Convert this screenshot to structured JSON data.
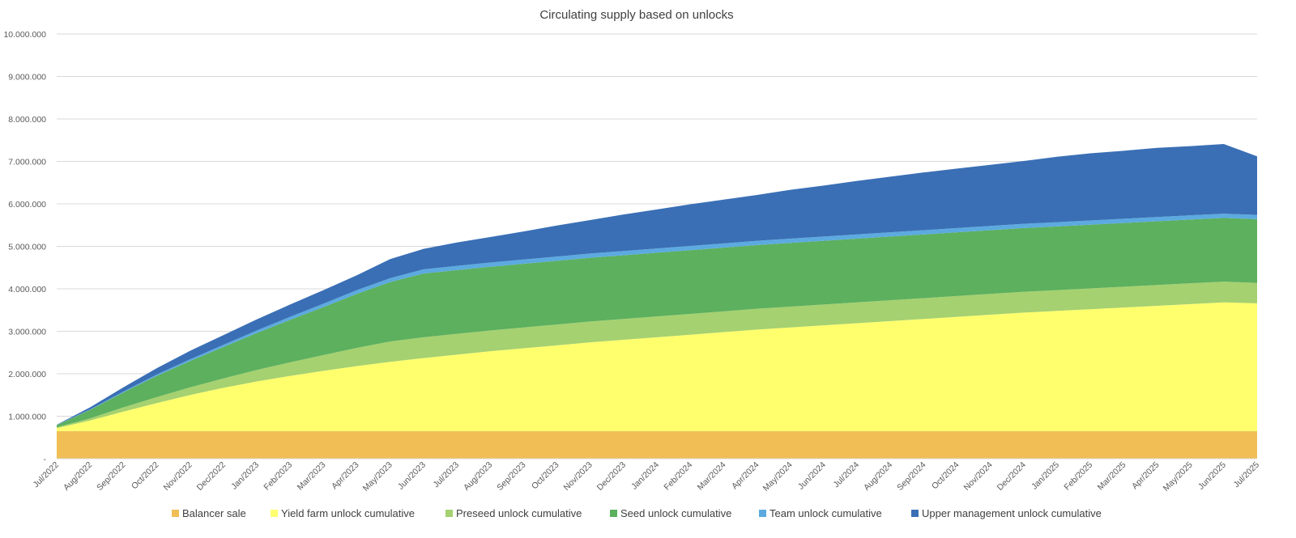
{
  "chart_data": {
    "type": "area",
    "stacked": true,
    "title": "Circulating supply based on unlocks",
    "xlabel": "",
    "ylabel": "",
    "ylim": [
      0,
      10000000
    ],
    "y_ticks": [
      0,
      1000000,
      2000000,
      3000000,
      4000000,
      5000000,
      6000000,
      7000000,
      8000000,
      9000000,
      10000000
    ],
    "y_tick_labels": [
      "-",
      "1.000.000",
      "2.000.000",
      "3.000.000",
      "4.000.000",
      "5.000.000",
      "6.000.000",
      "7.000.000",
      "8.000.000",
      "9.000.000",
      "10.000.000"
    ],
    "grid": true,
    "legend_position": "bottom",
    "categories": [
      "Jul/2022",
      "Aug/2022",
      "Sep/2022",
      "Oct/2022",
      "Nov/2022",
      "Dec/2022",
      "Jan/2023",
      "Feb/2023",
      "Mar/2023",
      "Apr/2023",
      "May/2023",
      "Jun/2023",
      "Jul/2023",
      "Aug/2023",
      "Sep/2023",
      "Oct/2023",
      "Nov/2023",
      "Dec/2023",
      "Jan/2024",
      "Feb/2024",
      "Mar/2024",
      "Apr/2024",
      "May/2024",
      "Jun/2024",
      "Jul/2024",
      "Aug/2024",
      "Sep/2024",
      "Oct/2024",
      "Nov/2024",
      "Dec/2024",
      "Jan/2025",
      "Feb/2025",
      "Mar/2025",
      "Apr/2025",
      "May/2025",
      "Jun/2025",
      "Jul/2025"
    ],
    "series": [
      {
        "name": "Balancer sale",
        "color": "#F0BE55",
        "values": [
          650000,
          650000,
          650000,
          650000,
          650000,
          650000,
          650000,
          650000,
          650000,
          650000,
          650000,
          650000,
          650000,
          650000,
          650000,
          650000,
          650000,
          650000,
          650000,
          650000,
          650000,
          650000,
          650000,
          650000,
          650000,
          650000,
          650000,
          650000,
          650000,
          650000,
          650000,
          650000,
          650000,
          650000,
          650000,
          650000,
          650000
        ]
      },
      {
        "name": "Yield farm unlock cumulative",
        "color": "#FFFF6E",
        "values": [
          70000,
          250000,
          460000,
          660000,
          850000,
          1020000,
          1170000,
          1300000,
          1420000,
          1530000,
          1630000,
          1720000,
          1800000,
          1880000,
          1950000,
          2020000,
          2090000,
          2150000,
          2210000,
          2270000,
          2330000,
          2390000,
          2440000,
          2490000,
          2540000,
          2590000,
          2640000,
          2690000,
          2740000,
          2790000,
          2830000,
          2870000,
          2910000,
          2950000,
          2990000,
          3030000,
          3010000
        ]
      },
      {
        "name": "Preseed unlock cumulative",
        "color": "#A5D170",
        "values": [
          20000,
          50000,
          100000,
          140000,
          180000,
          220000,
          270000,
          320000,
          370000,
          430000,
          480000,
          490000,
          490000,
          490000,
          490000,
          490000,
          490000,
          490000,
          490000,
          490000,
          490000,
          490000,
          490000,
          490000,
          490000,
          490000,
          490000,
          490000,
          490000,
          490000,
          490000,
          490000,
          490000,
          490000,
          490000,
          490000,
          480000
        ]
      },
      {
        "name": "Seed unlock cumulative",
        "color": "#5CB05E",
        "values": [
          50000,
          200000,
          350000,
          500000,
          620000,
          740000,
          870000,
          1000000,
          1130000,
          1270000,
          1400000,
          1500000,
          1500000,
          1500000,
          1500000,
          1500000,
          1500000,
          1500000,
          1500000,
          1500000,
          1500000,
          1500000,
          1500000,
          1500000,
          1500000,
          1500000,
          1500000,
          1500000,
          1500000,
          1500000,
          1500000,
          1500000,
          1500000,
          1500000,
          1500000,
          1500000,
          1500000
        ]
      },
      {
        "name": "Team unlock cumulative",
        "color": "#5CAAE0",
        "values": [
          5000,
          10000,
          20000,
          30000,
          40000,
          50000,
          60000,
          70000,
          80000,
          90000,
          90000,
          100000,
          100000,
          100000,
          100000,
          100000,
          100000,
          100000,
          100000,
          100000,
          100000,
          100000,
          100000,
          100000,
          100000,
          100000,
          100000,
          100000,
          100000,
          100000,
          100000,
          100000,
          100000,
          100000,
          100000,
          100000,
          100000
        ]
      },
      {
        "name": "Upper management unlock cumulative",
        "color": "#3A6FB5",
        "values": [
          5000,
          50000,
          100000,
          150000,
          200000,
          230000,
          260000,
          290000,
          320000,
          350000,
          450000,
          480000,
          550000,
          600000,
          660000,
          730000,
          790000,
          860000,
          920000,
          980000,
          1030000,
          1080000,
          1150000,
          1200000,
          1260000,
          1310000,
          1360000,
          1400000,
          1440000,
          1480000,
          1540000,
          1580000,
          1600000,
          1630000,
          1630000,
          1640000,
          1380000
        ]
      }
    ]
  }
}
